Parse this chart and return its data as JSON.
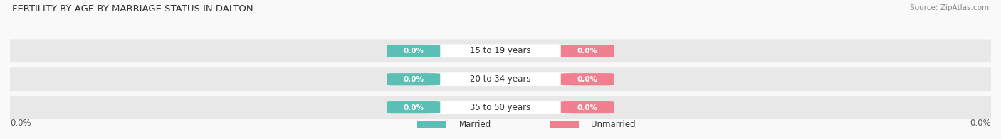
{
  "title": "FERTILITY BY AGE BY MARRIAGE STATUS IN DALTON",
  "source": "Source: ZipAtlas.com",
  "categories": [
    "15 to 19 years",
    "20 to 34 years",
    "35 to 50 years"
  ],
  "married_values": [
    0.0,
    0.0,
    0.0
  ],
  "unmarried_values": [
    0.0,
    0.0,
    0.0
  ],
  "married_color": "#5BBFB5",
  "unmarried_color": "#F08090",
  "bar_bg_color": "#E8E8E8",
  "background_color": "#F9F9F9",
  "title_fontsize": 9.5,
  "source_fontsize": 7.5,
  "cat_label_fontsize": 8.5,
  "val_label_fontsize": 7.5,
  "axis_label_fontsize": 8.5,
  "legend_fontsize": 8.5,
  "axis_label": "0.0%",
  "legend_married": "Married",
  "legend_unmarried": "Unmarried"
}
